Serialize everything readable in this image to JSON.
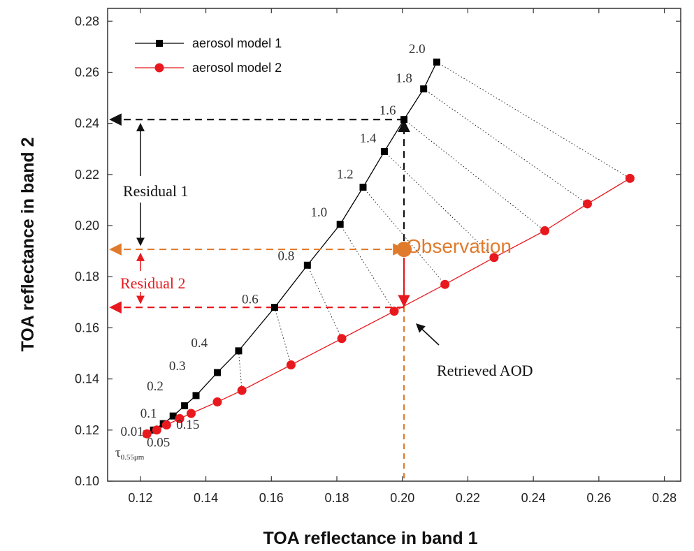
{
  "chart_data": {
    "type": "line",
    "xlabel": "TOA reflectance in band 1",
    "ylabel": "TOA reflectance in band 2",
    "xlim": [
      0.11,
      0.285
    ],
    "ylim": [
      0.1,
      0.285
    ],
    "xticks": [
      0.12,
      0.14,
      0.16,
      0.18,
      0.2,
      0.22,
      0.24,
      0.26,
      0.28
    ],
    "yticks": [
      0.1,
      0.12,
      0.14,
      0.16,
      0.18,
      0.2,
      0.22,
      0.24,
      0.26,
      0.28
    ],
    "xtick_labels": [
      "0.12",
      "0.14",
      "0.16",
      "0.18",
      "0.20",
      "0.22",
      "0.24",
      "0.26",
      "0.28"
    ],
    "ytick_labels": [
      "0.10",
      "0.12",
      "0.14",
      "0.16",
      "0.18",
      "0.20",
      "0.22",
      "0.24",
      "0.26",
      "0.28"
    ],
    "legend_position": "top-left",
    "grid": false,
    "series": [
      {
        "name": "aerosol model 1",
        "color": "#000000",
        "marker": "square",
        "x": [
          0.122,
          0.124,
          0.127,
          0.13,
          0.1335,
          0.137,
          0.1435,
          0.15,
          0.161,
          0.171,
          0.181,
          0.188,
          0.1945,
          0.2005,
          0.2065,
          0.2105
        ],
        "y": [
          0.1185,
          0.12,
          0.1225,
          0.1255,
          0.1295,
          0.1335,
          0.1425,
          0.151,
          0.168,
          0.1845,
          0.2005,
          0.215,
          0.229,
          0.2415,
          0.2535,
          0.264
        ]
      },
      {
        "name": "aerosol model 2",
        "color": "#e8191e",
        "marker": "circle",
        "x": [
          0.122,
          0.125,
          0.128,
          0.132,
          0.1355,
          0.1435,
          0.151,
          0.166,
          0.1815,
          0.1975,
          0.213,
          0.228,
          0.2435,
          0.2565,
          0.2695
        ],
        "y": [
          0.1185,
          0.12,
          0.122,
          0.1245,
          0.1265,
          0.131,
          0.1355,
          0.1455,
          0.1558,
          0.1665,
          0.177,
          0.1875,
          0.198,
          0.2085,
          0.2185
        ]
      }
    ],
    "aod_labels": [
      {
        "text": "0.01",
        "x": 0.1175,
        "y": 0.1178
      },
      {
        "text": "0.05",
        "x": 0.1255,
        "y": 0.1135
      },
      {
        "text": "0.15",
        "x": 0.1345,
        "y": 0.1205
      },
      {
        "text": "0.1",
        "x": 0.1225,
        "y": 0.1248
      },
      {
        "text": "0.2",
        "x": 0.1245,
        "y": 0.1355
      },
      {
        "text": "0.3",
        "x": 0.1313,
        "y": 0.1435
      },
      {
        "text": "0.4",
        "x": 0.138,
        "y": 0.1525
      },
      {
        "text": "0.6",
        "x": 0.1535,
        "y": 0.1695
      },
      {
        "text": "0.8",
        "x": 0.1645,
        "y": 0.1865
      },
      {
        "text": "1.0",
        "x": 0.1745,
        "y": 0.2035
      },
      {
        "text": "1.2",
        "x": 0.1825,
        "y": 0.2185
      },
      {
        "text": "1.4",
        "x": 0.1895,
        "y": 0.2325
      },
      {
        "text": "1.6",
        "x": 0.1955,
        "y": 0.2435
      },
      {
        "text": "1.8",
        "x": 0.2005,
        "y": 0.256
      },
      {
        "text": "2.0",
        "x": 0.2045,
        "y": 0.2675
      }
    ],
    "observation": {
      "x": 0.2005,
      "y": 0.1907,
      "label": "Observation",
      "color": "#e07b2d"
    },
    "residuals": [
      {
        "label": "Residual 1",
        "color": "#111111",
        "y_model": 0.2415,
        "y_obs": 0.1907
      },
      {
        "label": "Residual 2",
        "color": "#e8191e",
        "y_model": 0.168,
        "y_obs": 0.1907
      }
    ],
    "retrieved_label": "Retrieved AOD",
    "tau_label": {
      "symbol": "τ",
      "subscript": "0.55μm"
    }
  }
}
